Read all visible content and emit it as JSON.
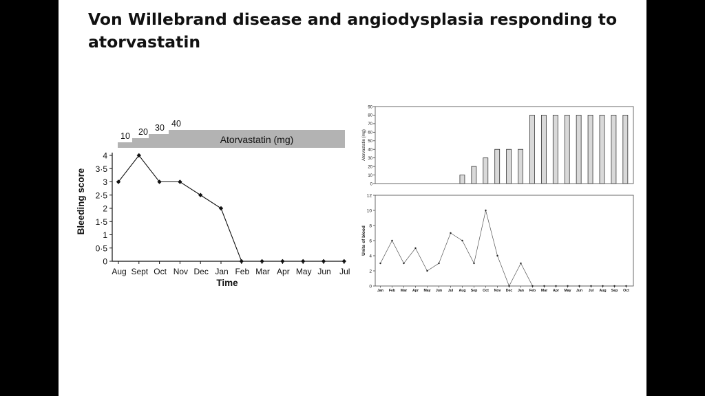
{
  "slide": {
    "title": "Von Willebrand disease and angiodysplasia responding to atorvastatin"
  },
  "chart_data": [
    {
      "type": "line",
      "xlabel": "Time",
      "ylabel": "Bleeding score",
      "categories": [
        "Aug",
        "Sept",
        "Oct",
        "Nov",
        "Dec",
        "Jan",
        "Feb",
        "Mar",
        "Apr",
        "May",
        "Jun",
        "Jul"
      ],
      "values": [
        3,
        4,
        3,
        3,
        2.5,
        2,
        0,
        0,
        0,
        0,
        0,
        0
      ],
      "ylim": [
        0,
        4
      ],
      "yticks": [
        "0",
        "0·5",
        "1",
        "1·5",
        "2",
        "2·5",
        "3",
        "3·5",
        "4"
      ],
      "grid": false,
      "dose_band": {
        "label": "Atorvastatin (mg)",
        "steps": [
          "10",
          "20",
          "30",
          "40"
        ],
        "color": "#b3b3b3"
      }
    },
    {
      "type": "bar",
      "ylabel": "Atorvastatin (mg)",
      "categories": [
        "Jan",
        "Feb",
        "Mar",
        "Apr",
        "May",
        "Jun",
        "Jul",
        "Aug",
        "Sep",
        "Oct",
        "Nov",
        "Dec",
        "Jan",
        "Feb",
        "Mar",
        "Apr",
        "May",
        "Jun",
        "Jul",
        "Aug",
        "Sep",
        "Oct"
      ],
      "values": [
        0,
        0,
        0,
        0,
        0,
        0,
        0,
        10,
        20,
        30,
        40,
        40,
        40,
        80,
        80,
        80,
        80,
        80,
        80,
        80,
        80,
        80
      ],
      "ylim": [
        0,
        90
      ],
      "yticks": [
        "0",
        "10",
        "20",
        "30",
        "40",
        "50",
        "60",
        "70",
        "80",
        "90"
      ],
      "bar_color": "#d9d9d9",
      "grid": false
    },
    {
      "type": "line",
      "ylabel": "Units of blood",
      "categories": [
        "Jan",
        "Feb",
        "Mar",
        "Apr",
        "May",
        "Jun",
        "Jul",
        "Aug",
        "Sep",
        "Oct",
        "Nov",
        "Dec",
        "Jan",
        "Feb",
        "Mar",
        "Apr",
        "May",
        "Jun",
        "Jul",
        "Aug",
        "Sep",
        "Oct"
      ],
      "values": [
        3,
        6,
        3,
        5,
        2,
        3,
        7,
        6,
        3,
        10,
        4,
        0,
        3,
        0,
        0,
        0,
        0,
        0,
        0,
        0,
        0,
        0
      ],
      "ylim": [
        0,
        12
      ],
      "yticks": [
        "0",
        "2",
        "4",
        "6",
        "8",
        "10",
        "12"
      ],
      "grid": false
    }
  ]
}
